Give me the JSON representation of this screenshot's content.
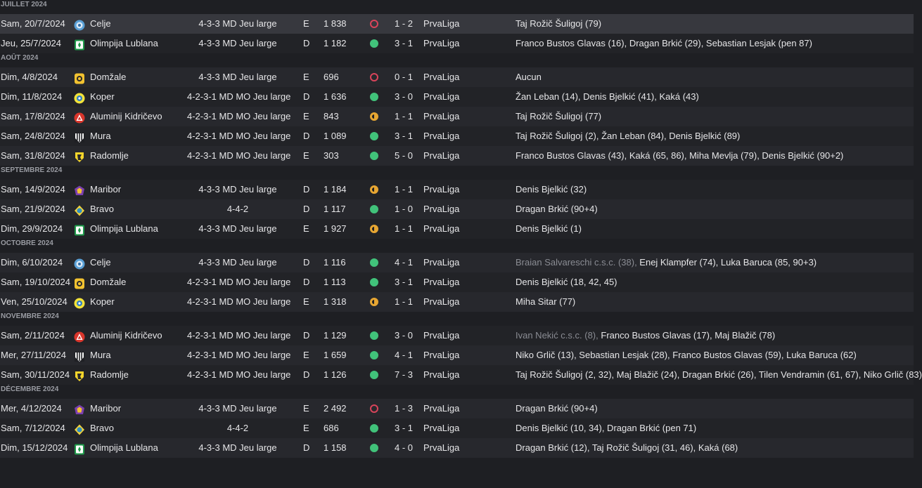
{
  "colors": {
    "win": "#41c27a",
    "loss": "#d8445a",
    "draw": "#e7a632",
    "background": "#1e1f23"
  },
  "months": [
    {
      "label": "JUILLET 2024",
      "matches": [
        {
          "date": "Sam, 20/7/2024",
          "team": "Celje",
          "crest": "celje-crest",
          "tactic": "4-3-3 MD Jeu large",
          "venue": "E",
          "attendance": "1 838",
          "result": "loss",
          "score": "1 - 2",
          "competition": "PrvaLiga",
          "og": "",
          "scorers": "Taj Rožič Šuligoj (79)",
          "selected": true
        },
        {
          "date": "Jeu, 25/7/2024",
          "team": "Olimpija Lublana",
          "crest": "olimpija-crest",
          "tactic": "4-3-3 MD Jeu large",
          "venue": "D",
          "attendance": "1 182",
          "result": "win",
          "score": "3 - 1",
          "competition": "PrvaLiga",
          "og": "",
          "scorers": "Franco Bustos Glavas (16), Dragan Brkić (29), Sebastian Lesjak (pen 87)"
        }
      ]
    },
    {
      "label": "AOÛT 2024",
      "matches": [
        {
          "date": "Dim, 4/8/2024",
          "team": "Domžale",
          "crest": "domzale-crest",
          "tactic": "4-3-3 MD Jeu large",
          "venue": "E",
          "attendance": "696",
          "result": "loss",
          "score": "0 - 1",
          "competition": "PrvaLiga",
          "og": "",
          "scorers": "Aucun"
        },
        {
          "date": "Dim, 11/8/2024",
          "team": "Koper",
          "crest": "koper-crest",
          "tactic": "4-2-3-1 MD MO Jeu large",
          "venue": "D",
          "attendance": "1 636",
          "result": "win",
          "score": "3 - 0",
          "competition": "PrvaLiga",
          "og": "",
          "scorers": "Žan Leban (14), Denis Bjelkić (41), Kaká (43)"
        },
        {
          "date": "Sam, 17/8/2024",
          "team": "Aluminij Kidričevo",
          "crest": "aluminij-crest",
          "tactic": "4-2-3-1 MD MO Jeu large",
          "venue": "E",
          "attendance": "843",
          "result": "draw",
          "score": "1 - 1",
          "competition": "PrvaLiga",
          "og": "",
          "scorers": "Taj Rožič Šuligoj (77)"
        },
        {
          "date": "Sam, 24/8/2024",
          "team": "Mura",
          "crest": "mura-crest",
          "tactic": "4-2-3-1 MD MO Jeu large",
          "venue": "D",
          "attendance": "1 089",
          "result": "win",
          "score": "3 - 1",
          "competition": "PrvaLiga",
          "og": "",
          "scorers": "Taj Rožič Šuligoj (2), Žan Leban (84), Denis Bjelkić (89)"
        },
        {
          "date": "Sam, 31/8/2024",
          "team": "Radomlje",
          "crest": "radomlje-crest",
          "tactic": "4-2-3-1 MD MO Jeu large",
          "venue": "E",
          "attendance": "303",
          "result": "win",
          "score": "5 - 0",
          "competition": "PrvaLiga",
          "og": "",
          "scorers": "Franco Bustos Glavas (43), Kaká (65, 86), Miha Mevlja (79), Denis Bjelkić (90+2)"
        }
      ]
    },
    {
      "label": "SEPTEMBRE 2024",
      "matches": [
        {
          "date": "Sam, 14/9/2024",
          "team": "Maribor",
          "crest": "maribor-crest",
          "tactic": "4-3-3 MD Jeu large",
          "venue": "D",
          "attendance": "1 184",
          "result": "draw",
          "score": "1 - 1",
          "competition": "PrvaLiga",
          "og": "",
          "scorers": "Denis Bjelkić (32)"
        },
        {
          "date": "Sam, 21/9/2024",
          "team": "Bravo",
          "crest": "bravo-crest",
          "tactic": "4-4-2",
          "venue": "D",
          "attendance": "1 117",
          "result": "win",
          "score": "1 - 0",
          "competition": "PrvaLiga",
          "og": "",
          "scorers": "Dragan Brkić (90+4)"
        },
        {
          "date": "Dim, 29/9/2024",
          "team": "Olimpija Lublana",
          "crest": "olimpija-crest",
          "tactic": "4-3-3 MD Jeu large",
          "venue": "E",
          "attendance": "1 927",
          "result": "draw",
          "score": "1 - 1",
          "competition": "PrvaLiga",
          "og": "",
          "scorers": "Denis Bjelkić (1)"
        }
      ]
    },
    {
      "label": "OCTOBRE 2024",
      "matches": [
        {
          "date": "Dim, 6/10/2024",
          "team": "Celje",
          "crest": "celje-crest",
          "tactic": "4-3-3 MD Jeu large",
          "venue": "D",
          "attendance": "1 116",
          "result": "win",
          "score": "4 - 1",
          "competition": "PrvaLiga",
          "og": "Braian Salvareschi c.s.c. (38), ",
          "scorers": "Enej Klampfer (74), Luka Baruca (85, 90+3)"
        },
        {
          "date": "Sam, 19/10/2024",
          "team": "Domžale",
          "crest": "domzale-crest",
          "tactic": "4-2-3-1 MD MO Jeu large",
          "venue": "D",
          "attendance": "1 113",
          "result": "win",
          "score": "3 - 1",
          "competition": "PrvaLiga",
          "og": "",
          "scorers": "Denis Bjelkić (18, 42, 45)"
        },
        {
          "date": "Ven, 25/10/2024",
          "team": "Koper",
          "crest": "koper-crest",
          "tactic": "4-2-3-1 MD MO Jeu large",
          "venue": "E",
          "attendance": "1 318",
          "result": "draw",
          "score": "1 - 1",
          "competition": "PrvaLiga",
          "og": "",
          "scorers": "Miha Sitar (77)"
        }
      ]
    },
    {
      "label": "NOVEMBRE 2024",
      "matches": [
        {
          "date": "Sam, 2/11/2024",
          "team": "Aluminij Kidričevo",
          "crest": "aluminij-crest",
          "tactic": "4-2-3-1 MD MO Jeu large",
          "venue": "D",
          "attendance": "1 129",
          "result": "win",
          "score": "3 - 0",
          "competition": "PrvaLiga",
          "og": "Ivan Nekić c.s.c. (8), ",
          "scorers": "Franco Bustos Glavas (17), Maj Blažič (78)"
        },
        {
          "date": "Mer, 27/11/2024",
          "team": "Mura",
          "crest": "mura-crest",
          "tactic": "4-2-3-1 MD MO Jeu large",
          "venue": "E",
          "attendance": "1 659",
          "result": "win",
          "score": "4 - 1",
          "competition": "PrvaLiga",
          "og": "",
          "scorers": "Niko Grlič (13), Sebastian Lesjak (28), Franco Bustos Glavas (59), Luka Baruca (62)"
        },
        {
          "date": "Sam, 30/11/2024",
          "team": "Radomlje",
          "crest": "radomlje-crest",
          "tactic": "4-2-3-1 MD MO Jeu large",
          "venue": "D",
          "attendance": "1 126",
          "result": "win",
          "score": "7 - 3",
          "competition": "PrvaLiga",
          "og": "",
          "scorers": "Taj Rožič Šuligoj (2, 32), Maj Blažič (24), Dragan Brkić (26), Tilen Vendramin (61, 67), Niko Grlič (83)"
        }
      ]
    },
    {
      "label": "DÉCEMBRE 2024",
      "matches": [
        {
          "date": "Mer, 4/12/2024",
          "team": "Maribor",
          "crest": "maribor-crest",
          "tactic": "4-3-3 MD Jeu large",
          "venue": "E",
          "attendance": "2 492",
          "result": "loss",
          "score": "1 - 3",
          "competition": "PrvaLiga",
          "og": "",
          "scorers": "Dragan Brkić (90+4)"
        },
        {
          "date": "Sam, 7/12/2024",
          "team": "Bravo",
          "crest": "bravo-crest",
          "tactic": "4-4-2",
          "venue": "E",
          "attendance": "686",
          "result": "win",
          "score": "3 - 1",
          "competition": "PrvaLiga",
          "og": "",
          "scorers": "Denis Bjelkić (10, 34), Dragan Brkić (pen 71)"
        },
        {
          "date": "Dim, 15/12/2024",
          "team": "Olimpija Lublana",
          "crest": "olimpija-crest",
          "tactic": "4-3-3 MD Jeu large",
          "venue": "D",
          "attendance": "1 158",
          "result": "win",
          "score": "4 - 0",
          "competition": "PrvaLiga",
          "og": "",
          "scorers": "Dragan Brkić (12), Taj Rožič Šuligoj (31, 46), Kaká (68)"
        }
      ]
    }
  ]
}
